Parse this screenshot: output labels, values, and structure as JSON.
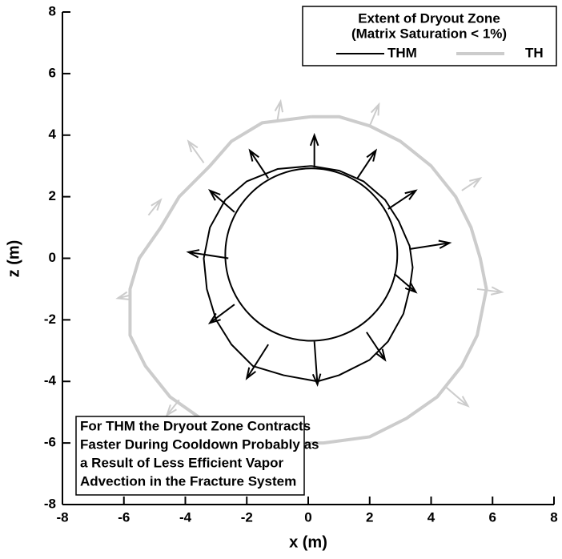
{
  "chart_data": {
    "type": "line",
    "xlabel": "x (m)",
    "ylabel": "z (m)",
    "xlim": [
      -8,
      8
    ],
    "ylim": [
      -8,
      8
    ],
    "xticks": [
      -8,
      -6,
      -4,
      -2,
      0,
      2,
      4,
      6,
      8
    ],
    "yticks": [
      -8,
      -6,
      -4,
      -2,
      0,
      2,
      4,
      6,
      8
    ],
    "legend_title": [
      "Extent of Dryout Zone",
      "(Matrix Saturation  < 1%)"
    ],
    "legend_position": "upper right",
    "annotation": [
      "For THM the Dryout Zone Contracts",
      "Faster During Cooldown Probably as",
      "a Result of Less Efficient Vapor",
      "Advection in the Fracture System"
    ],
    "series": [
      {
        "name": "THM",
        "color": "#000000",
        "width": 2,
        "x": [
          0.1,
          1.0,
          1.8,
          2.5,
          2.95,
          3.3,
          3.4,
          3.3,
          3.1,
          2.6,
          2.0,
          1.0,
          0.3,
          -0.8,
          -1.8,
          -2.5,
          -3.0,
          -3.3,
          -3.4,
          -3.2,
          -2.7,
          -2.0,
          -1.0,
          0.1
        ],
        "values": [
          3.0,
          2.85,
          2.5,
          1.9,
          1.2,
          0.4,
          -0.3,
          -1.0,
          -1.8,
          -2.7,
          -3.3,
          -3.8,
          -4.0,
          -3.8,
          -3.5,
          -2.8,
          -2.0,
          -1.0,
          0.0,
          1.0,
          1.9,
          2.5,
          2.9,
          3.0
        ]
      },
      {
        "name": "TH",
        "color": "#cccccc",
        "width": 4,
        "x": [
          0.1,
          -1.5,
          -2.5,
          -3.2,
          -4.2,
          -4.8,
          -5.5,
          -5.8,
          -5.8,
          -5.3,
          -4.5,
          -3.5,
          -2.5,
          -1.0,
          0.5,
          2.0,
          3.2,
          4.2,
          5.0,
          5.5,
          5.8,
          5.6,
          5.3,
          4.8,
          4.0,
          3.0,
          2.0,
          1.0,
          0.1
        ],
        "values": [
          4.6,
          4.4,
          3.8,
          3.0,
          2.0,
          1.0,
          0.0,
          -1.0,
          -2.5,
          -3.5,
          -4.5,
          -5.2,
          -5.7,
          -6.0,
          -6.0,
          -5.8,
          -5.2,
          -4.5,
          -3.5,
          -2.5,
          -1.0,
          0.0,
          1.0,
          2.0,
          3.0,
          3.8,
          4.3,
          4.6,
          4.6
        ]
      }
    ],
    "circle": {
      "cx": 0.1,
      "cy": 0.12,
      "r": 2.8,
      "color": "#000000"
    },
    "arrows": [
      {
        "color": "#000000",
        "start_x": [
          0.2,
          1.6,
          2.6,
          3.3,
          2.8,
          1.9,
          0.2,
          -1.3,
          -2.4,
          -2.6,
          -2.4,
          -1.3
        ],
        "start_y": [
          2.95,
          2.6,
          1.6,
          0.3,
          -0.5,
          -2.4,
          -2.7,
          -2.8,
          -1.5,
          0.0,
          1.5,
          2.6
        ],
        "end_x": [
          0.2,
          2.2,
          3.5,
          4.6,
          3.5,
          2.5,
          0.3,
          -2.0,
          -3.2,
          -3.9,
          -3.2,
          -1.9
        ],
        "end_y": [
          4.0,
          3.5,
          2.2,
          0.5,
          -1.1,
          -3.3,
          -4.1,
          -3.9,
          -2.1,
          0.2,
          2.2,
          3.5
        ]
      },
      {
        "color": "#cccccc",
        "start_x": [
          -1.0,
          2.0,
          -3.4,
          -5.2,
          -5.8,
          -4.2,
          4.5,
          5.5,
          5.0
        ],
        "start_y": [
          4.5,
          4.3,
          3.1,
          1.4,
          -1.2,
          -4.6,
          -4.2,
          -1.0,
          2.2
        ],
        "end_x": [
          -0.9,
          2.3,
          -3.9,
          -4.8,
          -6.2,
          -4.6,
          5.2,
          6.3,
          5.6
        ],
        "end_y": [
          5.1,
          5.0,
          3.8,
          1.9,
          -1.3,
          -5.1,
          -4.8,
          -1.1,
          2.6
        ]
      }
    ]
  }
}
